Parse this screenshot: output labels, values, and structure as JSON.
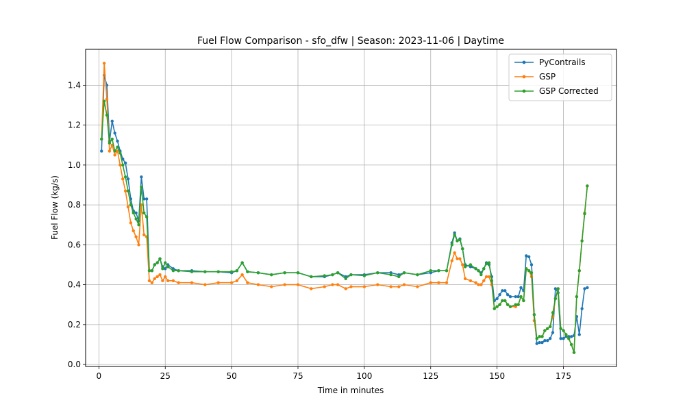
{
  "chart_data": {
    "type": "line",
    "title": "Fuel Flow Comparison - sfo_dfw | Season: 2023-11-06 | Daytime",
    "xlabel": "Time in minutes",
    "ylabel": "Fuel Flow (kg/s)",
    "xlim": [
      -5,
      195
    ],
    "ylim": [
      -0.01,
      1.58
    ],
    "xticks": [
      0,
      25,
      50,
      75,
      100,
      125,
      150,
      175
    ],
    "yticks": [
      0.0,
      0.2,
      0.4,
      0.6,
      0.8,
      1.0,
      1.2,
      1.4
    ],
    "grid": true,
    "legend_position": "top-right",
    "series": [
      {
        "name": "PyContrails",
        "color": "#1f77b4",
        "points": [
          [
            1,
            1.07
          ],
          [
            2,
            1.45
          ],
          [
            3,
            1.4
          ],
          [
            4,
            1.12
          ],
          [
            5,
            1.22
          ],
          [
            6,
            1.16
          ],
          [
            7,
            1.12
          ],
          [
            8,
            1.07
          ],
          [
            9,
            1.03
          ],
          [
            10,
            1.01
          ],
          [
            11,
            0.93
          ],
          [
            12,
            0.83
          ],
          [
            13,
            0.77
          ],
          [
            14,
            0.76
          ],
          [
            15,
            0.72
          ],
          [
            16,
            0.94
          ],
          [
            17,
            0.83
          ],
          [
            18,
            0.83
          ],
          [
            19,
            0.47
          ],
          [
            20,
            0.47
          ],
          [
            21,
            0.5
          ],
          [
            22,
            0.51
          ],
          [
            23,
            0.53
          ],
          [
            24,
            0.49
          ],
          [
            25,
            0.48
          ],
          [
            26,
            0.5
          ],
          [
            28,
            0.48
          ],
          [
            30,
            0.47
          ],
          [
            35,
            0.47
          ],
          [
            40,
            0.465
          ],
          [
            45,
            0.465
          ],
          [
            50,
            0.46
          ],
          [
            52,
            0.47
          ],
          [
            54,
            0.51
          ],
          [
            56,
            0.465
          ],
          [
            60,
            0.46
          ],
          [
            65,
            0.45
          ],
          [
            70,
            0.46
          ],
          [
            75,
            0.46
          ],
          [
            80,
            0.44
          ],
          [
            85,
            0.44
          ],
          [
            88,
            0.45
          ],
          [
            90,
            0.46
          ],
          [
            93,
            0.44
          ],
          [
            95,
            0.45
          ],
          [
            100,
            0.45
          ],
          [
            105,
            0.46
          ],
          [
            110,
            0.46
          ],
          [
            113,
            0.45
          ],
          [
            115,
            0.46
          ],
          [
            120,
            0.45
          ],
          [
            125,
            0.46
          ],
          [
            128,
            0.47
          ],
          [
            131,
            0.47
          ],
          [
            133,
            0.61
          ],
          [
            134,
            0.66
          ],
          [
            135,
            0.62
          ],
          [
            136,
            0.63
          ],
          [
            137,
            0.58
          ],
          [
            138,
            0.5
          ],
          [
            140,
            0.49
          ],
          [
            142,
            0.48
          ],
          [
            143,
            0.47
          ],
          [
            144,
            0.46
          ],
          [
            145,
            0.48
          ],
          [
            146,
            0.51
          ],
          [
            147,
            0.5
          ],
          [
            148,
            0.44
          ],
          [
            149,
            0.32
          ],
          [
            150,
            0.33
          ],
          [
            151,
            0.35
          ],
          [
            152,
            0.37
          ],
          [
            153,
            0.37
          ],
          [
            154,
            0.35
          ],
          [
            155,
            0.34
          ],
          [
            157,
            0.34
          ],
          [
            158,
            0.34
          ],
          [
            159,
            0.385
          ],
          [
            160,
            0.37
          ],
          [
            161,
            0.545
          ],
          [
            162,
            0.54
          ],
          [
            163,
            0.5
          ],
          [
            164,
            0.25
          ],
          [
            165,
            0.105
          ],
          [
            166,
            0.11
          ],
          [
            167,
            0.11
          ],
          [
            168,
            0.12
          ],
          [
            169,
            0.12
          ],
          [
            170,
            0.13
          ],
          [
            171,
            0.16
          ],
          [
            172,
            0.38
          ],
          [
            173,
            0.36
          ],
          [
            174,
            0.13
          ],
          [
            175,
            0.13
          ],
          [
            176,
            0.14
          ],
          [
            177,
            0.14
          ],
          [
            178,
            0.14
          ],
          [
            179,
            0.145
          ],
          [
            180,
            0.24
          ],
          [
            181,
            0.15
          ],
          [
            182,
            0.28
          ],
          [
            183,
            0.38
          ],
          [
            184,
            0.385
          ]
        ]
      },
      {
        "name": "GSP",
        "color": "#ff7f0e",
        "points": [
          [
            1,
            1.13
          ],
          [
            2,
            1.51
          ],
          [
            3,
            1.33
          ],
          [
            4,
            1.07
          ],
          [
            5,
            1.1
          ],
          [
            6,
            1.05
          ],
          [
            7,
            1.07
          ],
          [
            8,
            1.0
          ],
          [
            9,
            0.93
          ],
          [
            10,
            0.87
          ],
          [
            11,
            0.79
          ],
          [
            12,
            0.71
          ],
          [
            13,
            0.67
          ],
          [
            14,
            0.64
          ],
          [
            15,
            0.6
          ],
          [
            16,
            0.8
          ],
          [
            17,
            0.65
          ],
          [
            18,
            0.64
          ],
          [
            19,
            0.42
          ],
          [
            20,
            0.41
          ],
          [
            21,
            0.43
          ],
          [
            22,
            0.44
          ],
          [
            23,
            0.45
          ],
          [
            24,
            0.42
          ],
          [
            25,
            0.44
          ],
          [
            26,
            0.42
          ],
          [
            28,
            0.42
          ],
          [
            30,
            0.41
          ],
          [
            35,
            0.41
          ],
          [
            40,
            0.4
          ],
          [
            45,
            0.41
          ],
          [
            50,
            0.41
          ],
          [
            52,
            0.42
          ],
          [
            54,
            0.45
          ],
          [
            56,
            0.41
          ],
          [
            60,
            0.4
          ],
          [
            65,
            0.39
          ],
          [
            70,
            0.4
          ],
          [
            75,
            0.4
          ],
          [
            80,
            0.38
          ],
          [
            85,
            0.39
          ],
          [
            88,
            0.4
          ],
          [
            90,
            0.4
          ],
          [
            93,
            0.38
          ],
          [
            95,
            0.39
          ],
          [
            100,
            0.39
          ],
          [
            105,
            0.4
          ],
          [
            110,
            0.39
          ],
          [
            113,
            0.39
          ],
          [
            115,
            0.4
          ],
          [
            120,
            0.39
          ],
          [
            125,
            0.41
          ],
          [
            128,
            0.41
          ],
          [
            131,
            0.41
          ],
          [
            133,
            0.52
          ],
          [
            134,
            0.56
          ],
          [
            135,
            0.53
          ],
          [
            136,
            0.53
          ],
          [
            137,
            0.5
          ],
          [
            138,
            0.43
          ],
          [
            140,
            0.42
          ],
          [
            142,
            0.41
          ],
          [
            143,
            0.4
          ],
          [
            144,
            0.4
          ],
          [
            145,
            0.42
          ],
          [
            146,
            0.44
          ],
          [
            147,
            0.44
          ],
          [
            148,
            0.4
          ],
          [
            149,
            0.28
          ],
          [
            150,
            0.29
          ],
          [
            151,
            0.3
          ],
          [
            152,
            0.32
          ],
          [
            153,
            0.32
          ],
          [
            154,
            0.3
          ],
          [
            155,
            0.29
          ],
          [
            157,
            0.29
          ],
          [
            158,
            0.3
          ],
          [
            159,
            0.34
          ],
          [
            160,
            0.32
          ],
          [
            161,
            0.48
          ],
          [
            162,
            0.47
          ],
          [
            163,
            0.44
          ],
          [
            164,
            0.22
          ],
          [
            165,
            0.13
          ],
          [
            166,
            0.14
          ],
          [
            167,
            0.14
          ],
          [
            168,
            0.17
          ],
          [
            169,
            0.18
          ],
          [
            170,
            0.19
          ],
          [
            171,
            0.24
          ],
          [
            172,
            0.33
          ],
          [
            173,
            0.38
          ],
          [
            174,
            0.18
          ],
          [
            175,
            0.17
          ],
          [
            176,
            0.15
          ],
          [
            177,
            0.13
          ],
          [
            178,
            0.1
          ],
          [
            179,
            0.06
          ],
          [
            180,
            0.34
          ],
          [
            181,
            0.47
          ],
          [
            182,
            0.62
          ],
          [
            183,
            0.76
          ],
          [
            184,
            0.895
          ]
        ]
      },
      {
        "name": "GSP Corrected",
        "color": "#2ca02c",
        "points": [
          [
            1,
            1.13
          ],
          [
            2,
            1.32
          ],
          [
            3,
            1.25
          ],
          [
            4,
            1.11
          ],
          [
            5,
            1.13
          ],
          [
            6,
            1.07
          ],
          [
            7,
            1.09
          ],
          [
            8,
            1.06
          ],
          [
            9,
            1.0
          ],
          [
            10,
            0.94
          ],
          [
            11,
            0.87
          ],
          [
            12,
            0.8
          ],
          [
            13,
            0.76
          ],
          [
            14,
            0.73
          ],
          [
            15,
            0.7
          ],
          [
            16,
            0.89
          ],
          [
            17,
            0.76
          ],
          [
            18,
            0.74
          ],
          [
            19,
            0.47
          ],
          [
            20,
            0.47
          ],
          [
            21,
            0.5
          ],
          [
            22,
            0.51
          ],
          [
            23,
            0.53
          ],
          [
            24,
            0.48
          ],
          [
            25,
            0.51
          ],
          [
            26,
            0.49
          ],
          [
            28,
            0.47
          ],
          [
            30,
            0.47
          ],
          [
            35,
            0.465
          ],
          [
            40,
            0.465
          ],
          [
            45,
            0.465
          ],
          [
            50,
            0.465
          ],
          [
            52,
            0.47
          ],
          [
            54,
            0.51
          ],
          [
            56,
            0.465
          ],
          [
            60,
            0.46
          ],
          [
            65,
            0.45
          ],
          [
            70,
            0.46
          ],
          [
            75,
            0.46
          ],
          [
            80,
            0.44
          ],
          [
            85,
            0.445
          ],
          [
            88,
            0.45
          ],
          [
            90,
            0.46
          ],
          [
            93,
            0.43
          ],
          [
            95,
            0.45
          ],
          [
            100,
            0.445
          ],
          [
            105,
            0.46
          ],
          [
            110,
            0.45
          ],
          [
            113,
            0.44
          ],
          [
            115,
            0.46
          ],
          [
            120,
            0.45
          ],
          [
            125,
            0.47
          ],
          [
            128,
            0.47
          ],
          [
            131,
            0.47
          ],
          [
            133,
            0.6
          ],
          [
            134,
            0.65
          ],
          [
            135,
            0.62
          ],
          [
            136,
            0.625
          ],
          [
            137,
            0.58
          ],
          [
            138,
            0.49
          ],
          [
            140,
            0.5
          ],
          [
            142,
            0.48
          ],
          [
            143,
            0.47
          ],
          [
            144,
            0.45
          ],
          [
            145,
            0.48
          ],
          [
            146,
            0.505
          ],
          [
            147,
            0.51
          ],
          [
            148,
            0.42
          ],
          [
            149,
            0.28
          ],
          [
            150,
            0.29
          ],
          [
            151,
            0.3
          ],
          [
            152,
            0.32
          ],
          [
            153,
            0.32
          ],
          [
            154,
            0.3
          ],
          [
            155,
            0.29
          ],
          [
            157,
            0.3
          ],
          [
            158,
            0.3
          ],
          [
            159,
            0.34
          ],
          [
            160,
            0.32
          ],
          [
            161,
            0.48
          ],
          [
            162,
            0.47
          ],
          [
            163,
            0.46
          ],
          [
            164,
            0.25
          ],
          [
            165,
            0.13
          ],
          [
            166,
            0.14
          ],
          [
            167,
            0.14
          ],
          [
            168,
            0.17
          ],
          [
            169,
            0.18
          ],
          [
            170,
            0.19
          ],
          [
            171,
            0.26
          ],
          [
            172,
            0.33
          ],
          [
            173,
            0.38
          ],
          [
            174,
            0.18
          ],
          [
            175,
            0.17
          ],
          [
            176,
            0.15
          ],
          [
            177,
            0.13
          ],
          [
            178,
            0.1
          ],
          [
            179,
            0.06
          ],
          [
            180,
            0.34
          ],
          [
            181,
            0.47
          ],
          [
            182,
            0.62
          ],
          [
            183,
            0.755
          ],
          [
            184,
            0.895
          ]
        ]
      }
    ]
  }
}
